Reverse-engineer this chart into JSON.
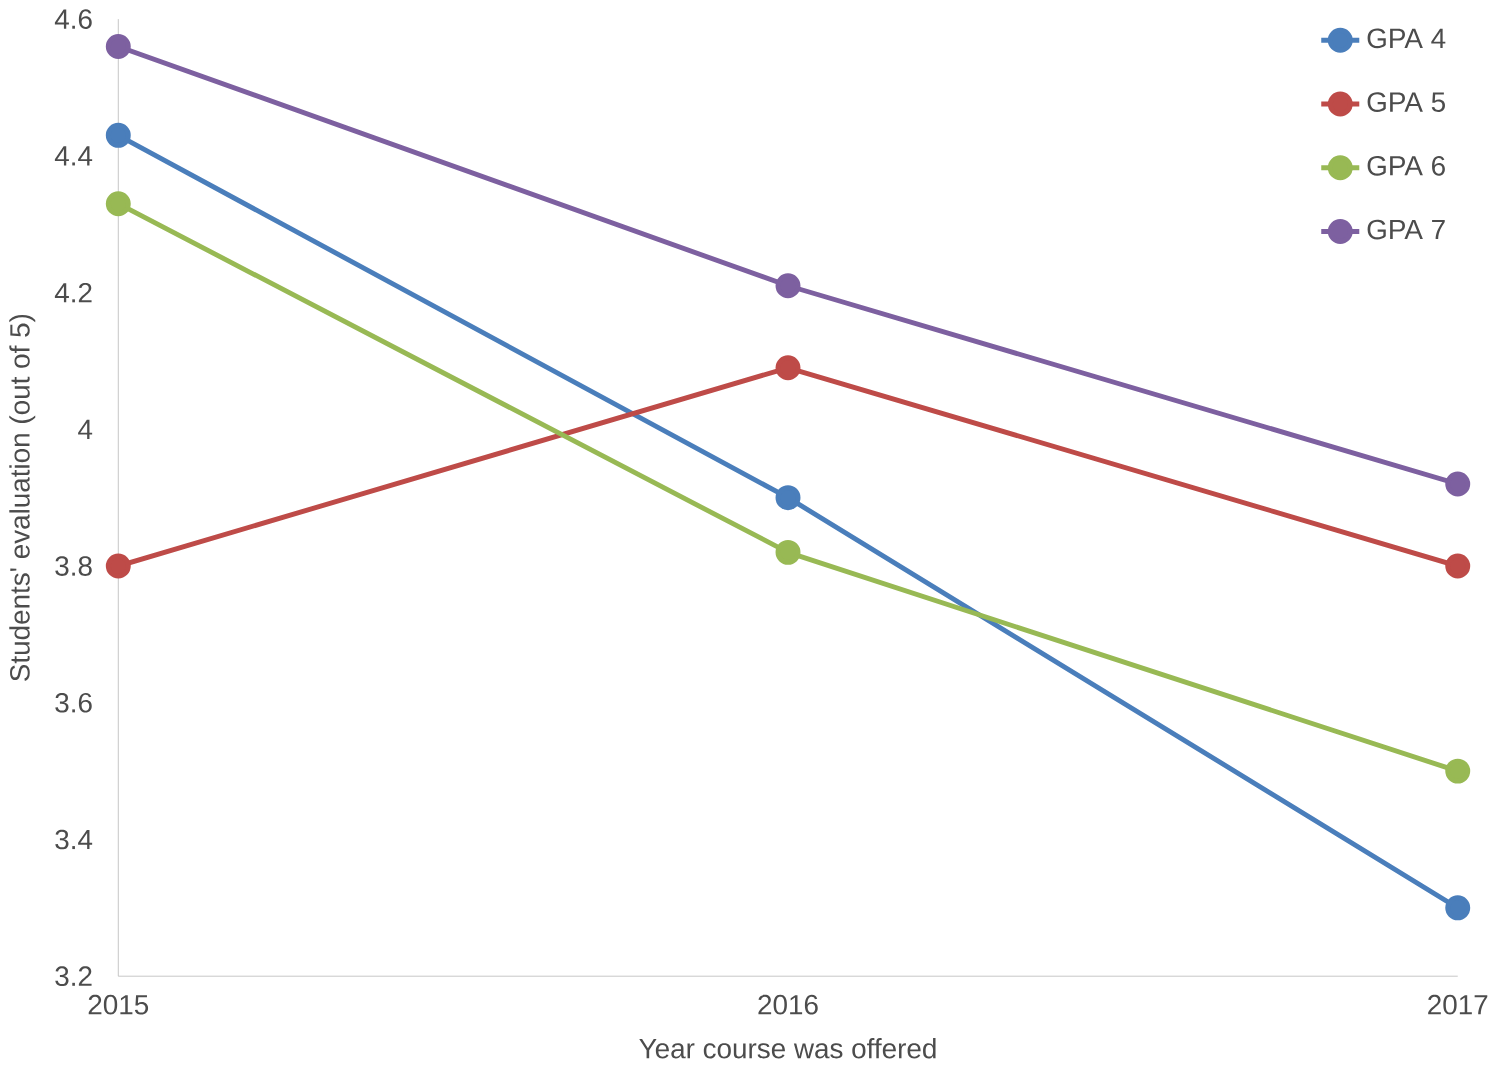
{
  "chart_data": {
    "type": "line",
    "xlabel": "Year course was offered",
    "ylabel": "Students' evaluation (out of 5)",
    "categories": [
      "2015",
      "2016",
      "2017"
    ],
    "series": [
      {
        "name": "GPA 4",
        "color": "#4a7ebb",
        "values": [
          4.43,
          3.9,
          3.3
        ]
      },
      {
        "name": "GPA 5",
        "color": "#be4b48",
        "values": [
          3.8,
          4.09,
          3.8
        ]
      },
      {
        "name": "GPA 6",
        "color": "#98b954",
        "values": [
          4.33,
          3.82,
          3.5
        ]
      },
      {
        "name": "GPA 7",
        "color": "#7d60a0",
        "values": [
          4.56,
          4.21,
          3.92
        ]
      }
    ],
    "ylim": [
      3.2,
      4.6
    ],
    "yticks": [
      3.2,
      3.4,
      3.6,
      3.8,
      4,
      4.2,
      4.4,
      4.6
    ],
    "grid": false,
    "legend": "top right",
    "marker": "circle",
    "line_style": "solid"
  }
}
